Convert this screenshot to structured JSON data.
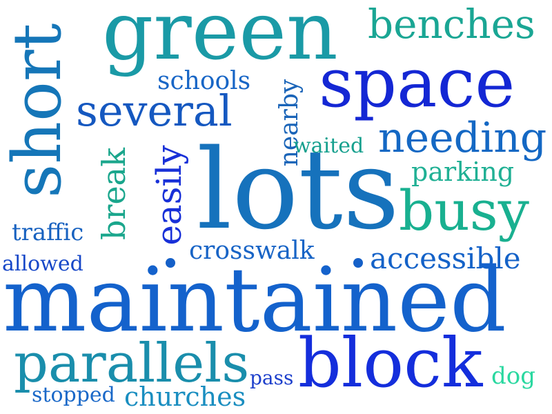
{
  "words": [
    {
      "id": "green",
      "text": "green",
      "color": "#1a9aa6"
    },
    {
      "id": "benches",
      "text": "benches",
      "color": "#1aa694"
    },
    {
      "id": "space",
      "text": "space",
      "color": "#1427d4"
    },
    {
      "id": "short",
      "text": "short",
      "color": "#1576b8"
    },
    {
      "id": "schools",
      "text": "schools",
      "color": "#1866c6"
    },
    {
      "id": "several",
      "text": "several",
      "color": "#1558c0"
    },
    {
      "id": "nearby",
      "text": "nearby",
      "color": "#1a64b8"
    },
    {
      "id": "needing",
      "text": "needing",
      "color": "#1468c4"
    },
    {
      "id": "break",
      "text": "break",
      "color": "#1aa68c"
    },
    {
      "id": "easily",
      "text": "easily",
      "color": "#1830d8"
    },
    {
      "id": "waited",
      "text": "waited",
      "color": "#16a08e"
    },
    {
      "id": "lots",
      "text": "lots",
      "color": "#1672bc"
    },
    {
      "id": "parking",
      "text": "parking",
      "color": "#20b094"
    },
    {
      "id": "busy",
      "text": "busy",
      "color": "#19b090"
    },
    {
      "id": "traffic",
      "text": "traffic",
      "color": "#1862c0"
    },
    {
      "id": "crosswalk",
      "text": "crosswalk",
      "color": "#1864c6"
    },
    {
      "id": "accessible",
      "text": "accessible",
      "color": "#1462c8"
    },
    {
      "id": "allowed",
      "text": "allowed",
      "color": "#1848c8"
    },
    {
      "id": "maintained",
      "text": "maintained",
      "color": "#1462cc"
    },
    {
      "id": "parallels",
      "text": "parallels",
      "color": "#1a8eac"
    },
    {
      "id": "block",
      "text": "block",
      "color": "#142edc"
    },
    {
      "id": "pass",
      "text": "pass",
      "color": "#1e40cc"
    },
    {
      "id": "dog",
      "text": "dog",
      "color": "#2ad8a0"
    },
    {
      "id": "stopped",
      "text": "stopped",
      "color": "#1a68c8"
    },
    {
      "id": "churches",
      "text": "churches",
      "color": "#1a8ec0"
    }
  ],
  "dot_colors": {
    "left": "#1560c8",
    "right": "#1560c8"
  }
}
